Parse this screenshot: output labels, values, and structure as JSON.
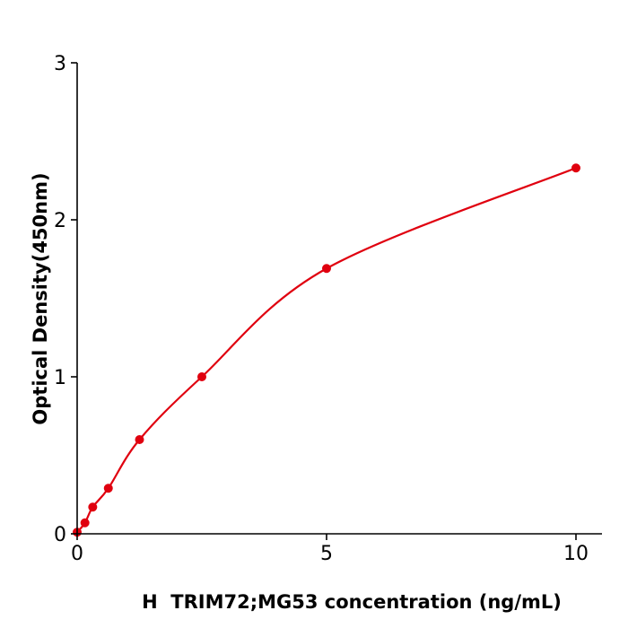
{
  "chart_data": {
    "type": "scatter",
    "title": "",
    "xlabel": "H  TRIM72;MG53 concentration (ng/mL)",
    "ylabel": "Optical Density(450nm)",
    "xlim": [
      0,
      10.5
    ],
    "ylim": [
      0,
      3
    ],
    "xticks": [
      "0",
      "5",
      "10"
    ],
    "yticks": [
      "0",
      "1",
      "2",
      "3"
    ],
    "grid": false,
    "legend": "none",
    "series": [
      {
        "x": [
          0,
          0.156,
          0.312,
          0.625,
          1.25,
          2.5,
          5,
          10
        ],
        "y": [
          0.01,
          0.07,
          0.17,
          0.29,
          0.6,
          1.0,
          1.69,
          2.33
        ],
        "color": "#e0000f",
        "fit_curve": true
      }
    ]
  }
}
